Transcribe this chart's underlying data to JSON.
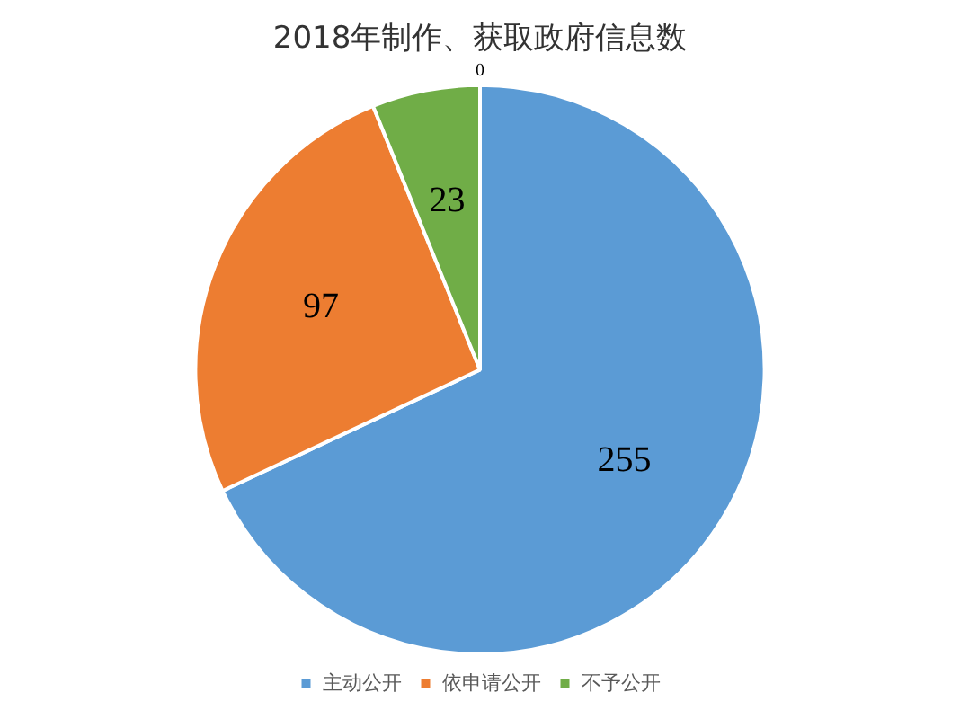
{
  "chart_data": {
    "type": "pie",
    "title": "2018年制作、获取政府信息数",
    "categories": [
      "主动公开",
      "依申请公开",
      "不予公开",
      null
    ],
    "values": [
      255,
      97,
      23,
      0
    ],
    "colors": [
      "#5b9bd5",
      "#ed7d31",
      "#70ad47",
      "#a5a5a5"
    ],
    "value_labels": [
      "255",
      "97",
      "23",
      "0"
    ],
    "legend": "bottom"
  }
}
